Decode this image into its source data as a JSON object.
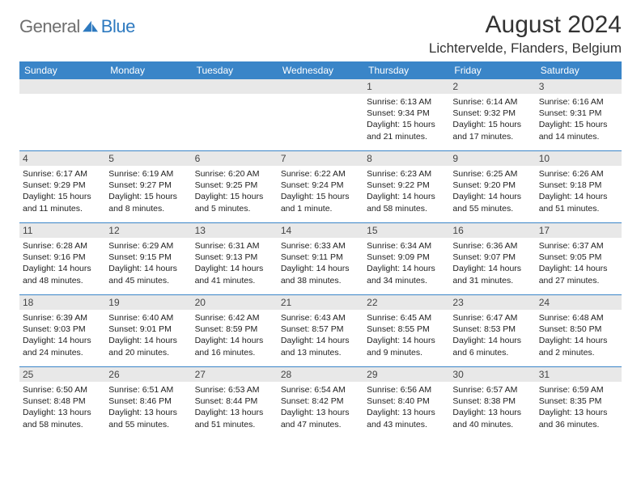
{
  "brand": {
    "general": "General",
    "blue": "Blue"
  },
  "header": {
    "title": "August 2024",
    "location": "Lichtervelde, Flanders, Belgium"
  },
  "colors": {
    "header_bg": "#3a85c8",
    "header_text": "#ffffff",
    "daynum_bg": "#e8e8e8",
    "divider": "#3a85c8",
    "logo_gray": "#6f6f6f",
    "logo_blue": "#2e7ac0",
    "body_bg": "#ffffff"
  },
  "daysOfWeek": [
    "Sunday",
    "Monday",
    "Tuesday",
    "Wednesday",
    "Thursday",
    "Friday",
    "Saturday"
  ],
  "weeks": [
    [
      {
        "n": "",
        "sr": "",
        "ss": "",
        "dl": ""
      },
      {
        "n": "",
        "sr": "",
        "ss": "",
        "dl": ""
      },
      {
        "n": "",
        "sr": "",
        "ss": "",
        "dl": ""
      },
      {
        "n": "",
        "sr": "",
        "ss": "",
        "dl": ""
      },
      {
        "n": "1",
        "sr": "Sunrise: 6:13 AM",
        "ss": "Sunset: 9:34 PM",
        "dl": "Daylight: 15 hours and 21 minutes."
      },
      {
        "n": "2",
        "sr": "Sunrise: 6:14 AM",
        "ss": "Sunset: 9:32 PM",
        "dl": "Daylight: 15 hours and 17 minutes."
      },
      {
        "n": "3",
        "sr": "Sunrise: 6:16 AM",
        "ss": "Sunset: 9:31 PM",
        "dl": "Daylight: 15 hours and 14 minutes."
      }
    ],
    [
      {
        "n": "4",
        "sr": "Sunrise: 6:17 AM",
        "ss": "Sunset: 9:29 PM",
        "dl": "Daylight: 15 hours and 11 minutes."
      },
      {
        "n": "5",
        "sr": "Sunrise: 6:19 AM",
        "ss": "Sunset: 9:27 PM",
        "dl": "Daylight: 15 hours and 8 minutes."
      },
      {
        "n": "6",
        "sr": "Sunrise: 6:20 AM",
        "ss": "Sunset: 9:25 PM",
        "dl": "Daylight: 15 hours and 5 minutes."
      },
      {
        "n": "7",
        "sr": "Sunrise: 6:22 AM",
        "ss": "Sunset: 9:24 PM",
        "dl": "Daylight: 15 hours and 1 minute."
      },
      {
        "n": "8",
        "sr": "Sunrise: 6:23 AM",
        "ss": "Sunset: 9:22 PM",
        "dl": "Daylight: 14 hours and 58 minutes."
      },
      {
        "n": "9",
        "sr": "Sunrise: 6:25 AM",
        "ss": "Sunset: 9:20 PM",
        "dl": "Daylight: 14 hours and 55 minutes."
      },
      {
        "n": "10",
        "sr": "Sunrise: 6:26 AM",
        "ss": "Sunset: 9:18 PM",
        "dl": "Daylight: 14 hours and 51 minutes."
      }
    ],
    [
      {
        "n": "11",
        "sr": "Sunrise: 6:28 AM",
        "ss": "Sunset: 9:16 PM",
        "dl": "Daylight: 14 hours and 48 minutes."
      },
      {
        "n": "12",
        "sr": "Sunrise: 6:29 AM",
        "ss": "Sunset: 9:15 PM",
        "dl": "Daylight: 14 hours and 45 minutes."
      },
      {
        "n": "13",
        "sr": "Sunrise: 6:31 AM",
        "ss": "Sunset: 9:13 PM",
        "dl": "Daylight: 14 hours and 41 minutes."
      },
      {
        "n": "14",
        "sr": "Sunrise: 6:33 AM",
        "ss": "Sunset: 9:11 PM",
        "dl": "Daylight: 14 hours and 38 minutes."
      },
      {
        "n": "15",
        "sr": "Sunrise: 6:34 AM",
        "ss": "Sunset: 9:09 PM",
        "dl": "Daylight: 14 hours and 34 minutes."
      },
      {
        "n": "16",
        "sr": "Sunrise: 6:36 AM",
        "ss": "Sunset: 9:07 PM",
        "dl": "Daylight: 14 hours and 31 minutes."
      },
      {
        "n": "17",
        "sr": "Sunrise: 6:37 AM",
        "ss": "Sunset: 9:05 PM",
        "dl": "Daylight: 14 hours and 27 minutes."
      }
    ],
    [
      {
        "n": "18",
        "sr": "Sunrise: 6:39 AM",
        "ss": "Sunset: 9:03 PM",
        "dl": "Daylight: 14 hours and 24 minutes."
      },
      {
        "n": "19",
        "sr": "Sunrise: 6:40 AM",
        "ss": "Sunset: 9:01 PM",
        "dl": "Daylight: 14 hours and 20 minutes."
      },
      {
        "n": "20",
        "sr": "Sunrise: 6:42 AM",
        "ss": "Sunset: 8:59 PM",
        "dl": "Daylight: 14 hours and 16 minutes."
      },
      {
        "n": "21",
        "sr": "Sunrise: 6:43 AM",
        "ss": "Sunset: 8:57 PM",
        "dl": "Daylight: 14 hours and 13 minutes."
      },
      {
        "n": "22",
        "sr": "Sunrise: 6:45 AM",
        "ss": "Sunset: 8:55 PM",
        "dl": "Daylight: 14 hours and 9 minutes."
      },
      {
        "n": "23",
        "sr": "Sunrise: 6:47 AM",
        "ss": "Sunset: 8:53 PM",
        "dl": "Daylight: 14 hours and 6 minutes."
      },
      {
        "n": "24",
        "sr": "Sunrise: 6:48 AM",
        "ss": "Sunset: 8:50 PM",
        "dl": "Daylight: 14 hours and 2 minutes."
      }
    ],
    [
      {
        "n": "25",
        "sr": "Sunrise: 6:50 AM",
        "ss": "Sunset: 8:48 PM",
        "dl": "Daylight: 13 hours and 58 minutes."
      },
      {
        "n": "26",
        "sr": "Sunrise: 6:51 AM",
        "ss": "Sunset: 8:46 PM",
        "dl": "Daylight: 13 hours and 55 minutes."
      },
      {
        "n": "27",
        "sr": "Sunrise: 6:53 AM",
        "ss": "Sunset: 8:44 PM",
        "dl": "Daylight: 13 hours and 51 minutes."
      },
      {
        "n": "28",
        "sr": "Sunrise: 6:54 AM",
        "ss": "Sunset: 8:42 PM",
        "dl": "Daylight: 13 hours and 47 minutes."
      },
      {
        "n": "29",
        "sr": "Sunrise: 6:56 AM",
        "ss": "Sunset: 8:40 PM",
        "dl": "Daylight: 13 hours and 43 minutes."
      },
      {
        "n": "30",
        "sr": "Sunrise: 6:57 AM",
        "ss": "Sunset: 8:38 PM",
        "dl": "Daylight: 13 hours and 40 minutes."
      },
      {
        "n": "31",
        "sr": "Sunrise: 6:59 AM",
        "ss": "Sunset: 8:35 PM",
        "dl": "Daylight: 13 hours and 36 minutes."
      }
    ]
  ]
}
